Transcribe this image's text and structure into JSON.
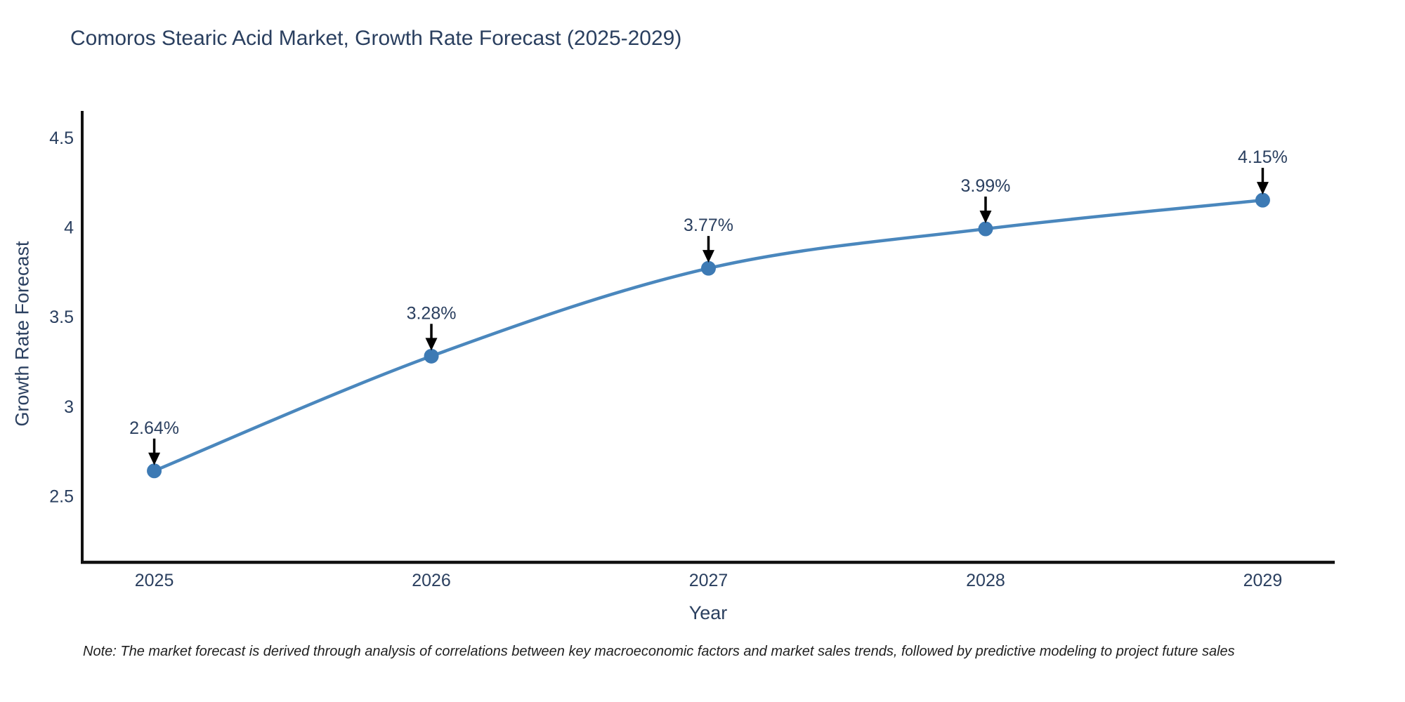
{
  "title": "Comoros Stearic Acid Market, Growth Rate Forecast (2025-2029)",
  "note": "Note: The market forecast is derived through analysis of correlations between key macroeconomic factors and market sales trends, followed by predictive modeling to project future sales",
  "chart_data": {
    "type": "line",
    "title": "Comoros Stearic Acid Market, Growth Rate Forecast (2025-2029)",
    "xlabel": "Year",
    "ylabel": "Growth Rate Forecast",
    "x": [
      2025,
      2026,
      2027,
      2028,
      2029
    ],
    "series": [
      {
        "name": "Growth Rate Forecast",
        "values": [
          2.64,
          3.28,
          3.77,
          3.99,
          4.15
        ]
      }
    ],
    "point_labels": [
      "2.64%",
      "3.28%",
      "3.77%",
      "3.99%",
      "4.15%"
    ],
    "x_ticks": [
      2025,
      2026,
      2027,
      2028,
      2029
    ],
    "y_ticks": [
      2.5,
      3,
      3.5,
      4,
      4.5
    ],
    "xlim": [
      2024.74,
      2029.26
    ],
    "ylim": [
      2.13,
      4.64
    ],
    "grid": false,
    "legend": "none",
    "line_shape": "spline",
    "colors": {
      "line": "#4a87bd",
      "marker": "#3d7ab4",
      "axis": "#111111",
      "tick_text": "#2a3f5f",
      "annotation_text": "#2a3f5f",
      "arrow": "#000000",
      "background": "#ffffff"
    }
  }
}
